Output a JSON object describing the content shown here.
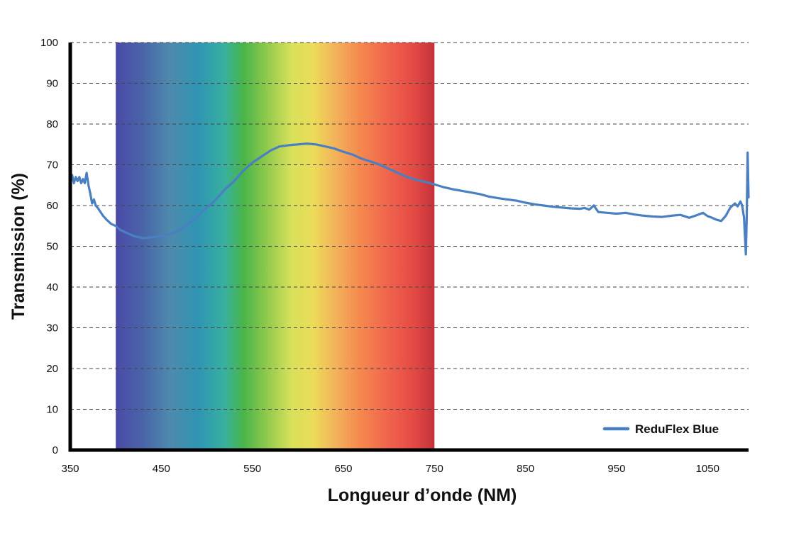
{
  "chart_data": {
    "type": "line",
    "title": "",
    "xlabel": "Longueur d’onde (NM)",
    "ylabel": "Transmission (%)",
    "xlim": [
      350,
      1095
    ],
    "ylim": [
      0,
      100
    ],
    "x_ticks": [
      "350",
      "450",
      "550",
      "650",
      "750",
      "850",
      "950",
      "1050"
    ],
    "y_ticks": [
      "0",
      "10",
      "20",
      "30",
      "40",
      "50",
      "60",
      "70",
      "80",
      "90",
      "100"
    ],
    "grid": "horizontal dashed",
    "legend_position": "bottom-right",
    "spectrum_band": {
      "x_start": 400,
      "x_end": 750
    },
    "series": [
      {
        "name": "ReduFlex Blue",
        "color": "#4a7fc1",
        "x": [
          350,
          352,
          354,
          356,
          358,
          360,
          362,
          364,
          366,
          368,
          370,
          372,
          374,
          376,
          378,
          380,
          383,
          386,
          390,
          395,
          400,
          405,
          410,
          420,
          430,
          440,
          450,
          460,
          470,
          480,
          490,
          500,
          510,
          520,
          530,
          540,
          550,
          560,
          570,
          580,
          590,
          600,
          610,
          620,
          630,
          640,
          650,
          660,
          670,
          680,
          690,
          700,
          710,
          720,
          730,
          740,
          750,
          760,
          770,
          780,
          790,
          800,
          810,
          820,
          830,
          840,
          850,
          860,
          870,
          880,
          890,
          900,
          910,
          915,
          920,
          925,
          930,
          940,
          950,
          960,
          970,
          980,
          990,
          1000,
          1010,
          1020,
          1030,
          1040,
          1045,
          1050,
          1055,
          1060,
          1065,
          1070,
          1075,
          1080,
          1083,
          1086,
          1088,
          1090,
          1092,
          1093,
          1094,
          1095
        ],
        "values": [
          66,
          67.5,
          65.5,
          67,
          66,
          67,
          65.5,
          66.5,
          65.5,
          68,
          65,
          63,
          60.5,
          61.5,
          60,
          59.5,
          58.5,
          57.5,
          56.5,
          55.5,
          55,
          54,
          53.5,
          52.5,
          52,
          52.2,
          52.5,
          53,
          54,
          55.5,
          57.5,
          59.5,
          61.5,
          64,
          66,
          68.5,
          70.5,
          72,
          73.5,
          74.5,
          74.8,
          75,
          75.2,
          75,
          74.5,
          74,
          73.2,
          72.5,
          71.5,
          70.8,
          70,
          69,
          68,
          67,
          66.3,
          65.8,
          65.2,
          64.5,
          64,
          63.6,
          63.2,
          62.8,
          62.2,
          61.8,
          61.5,
          61.2,
          60.7,
          60.3,
          60,
          59.7,
          59.5,
          59.3,
          59.2,
          59.4,
          59,
          60,
          58.4,
          58.2,
          58,
          58.2,
          57.8,
          57.5,
          57.3,
          57.2,
          57.5,
          57.7,
          57,
          57.8,
          58.2,
          57.4,
          57,
          56.5,
          56.2,
          57.5,
          59.5,
          60.5,
          59.8,
          61,
          60,
          57,
          48,
          57,
          73,
          62
        ]
      }
    ]
  }
}
